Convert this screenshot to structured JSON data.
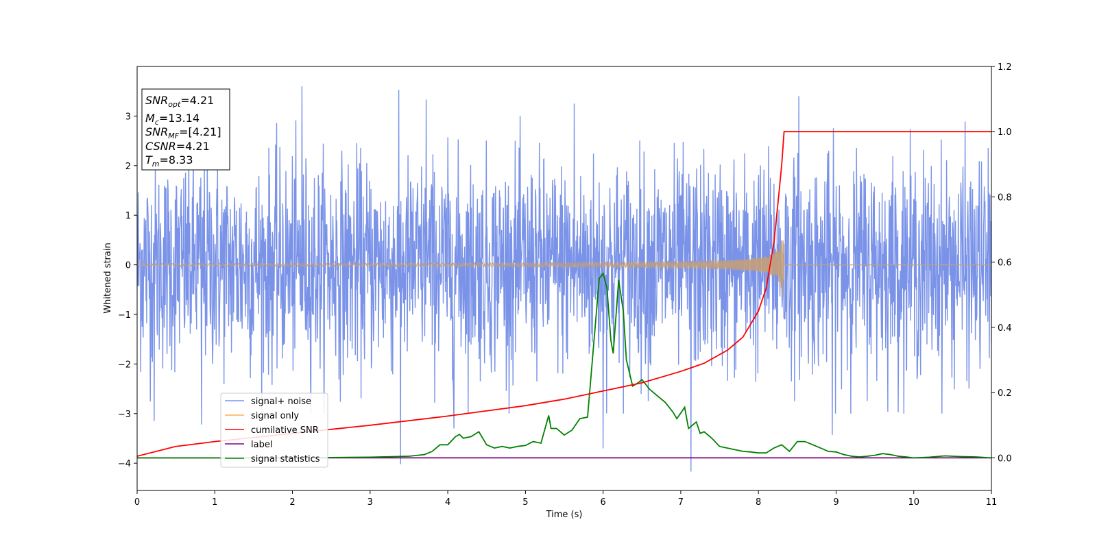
{
  "chart_data": {
    "type": "line",
    "xlabel": "Time (s)",
    "ylabel": "Whitened strain",
    "xlim": [
      0,
      11
    ],
    "ylim": [
      -4.55,
      4.0
    ],
    "y2lim": [
      -0.1,
      1.2
    ],
    "x_ticks": [
      "0",
      "1",
      "2",
      "3",
      "4",
      "5",
      "6",
      "7",
      "8",
      "9",
      "10",
      "11"
    ],
    "y_ticks": [
      "3",
      "2",
      "1",
      "0",
      "−1",
      "−2",
      "−3",
      "−4"
    ],
    "y2_ticks": [
      "1.2",
      "1.0",
      "0.8",
      "0.6",
      "0.4",
      "0.2",
      "0.0"
    ],
    "grid": false,
    "legend_position": "lower-left",
    "colors": {
      "signal_noise": "#7a93e8",
      "signal_only": "#f7b050",
      "overlap": "#c4a07a",
      "cumulative": "#ff0000",
      "label": "#800080",
      "statistics": "#008000"
    },
    "series": [
      {
        "name": "signal+ noise",
        "axis": "left",
        "description_values": "noise band approx ±2 with peaks up to 3.6 and down to -4.2",
        "extremes": [
          {
            "x": 2.12,
            "y": 3.6
          },
          {
            "x": 3.37,
            "y": 3.53
          },
          {
            "x": 3.72,
            "y": 3.33
          },
          {
            "x": 5.63,
            "y": 3.25
          },
          {
            "x": 8.52,
            "y": 3.4
          },
          {
            "x": 3.39,
            "y": -4.02
          },
          {
            "x": 6.0,
            "y": -3.7
          },
          {
            "x": 7.13,
            "y": -4.17
          },
          {
            "x": 8.95,
            "y": -3.43
          },
          {
            "x": 0.22,
            "y": -3.15
          },
          {
            "x": 0.83,
            "y": -3.22
          },
          {
            "x": 4.08,
            "y": -3.3
          }
        ]
      },
      {
        "name": "signal only",
        "axis": "left",
        "chirp_end": 8.33,
        "peak_amplitude": 0.68
      },
      {
        "name": "cumilative SNR",
        "axis": "right",
        "x": [
          0,
          0.5,
          1,
          2,
          3,
          4,
          5,
          5.5,
          6,
          6.5,
          7,
          7.3,
          7.6,
          7.8,
          8.0,
          8.1,
          8.2,
          8.26,
          8.3,
          8.33,
          8.4,
          9,
          10,
          11
        ],
        "values": [
          0.005,
          0.035,
          0.05,
          0.075,
          0.1,
          0.128,
          0.16,
          0.18,
          0.205,
          0.23,
          0.265,
          0.29,
          0.33,
          0.37,
          0.45,
          0.52,
          0.66,
          0.8,
          0.9,
          1.0,
          1.0,
          1.0,
          1.0,
          1.0
        ]
      },
      {
        "name": "label",
        "axis": "right",
        "x": [
          0,
          11
        ],
        "values": [
          0.0,
          0.0
        ]
      },
      {
        "name": "signal statistics",
        "axis": "right",
        "x": [
          0,
          1,
          2,
          3,
          3.5,
          3.7,
          3.8,
          3.9,
          4.0,
          4.1,
          4.15,
          4.2,
          4.3,
          4.4,
          4.5,
          4.6,
          4.7,
          4.8,
          4.9,
          5.0,
          5.1,
          5.2,
          5.3,
          5.33,
          5.4,
          5.5,
          5.6,
          5.7,
          5.8,
          5.88,
          5.95,
          6.0,
          6.05,
          6.1,
          6.13,
          6.2,
          6.26,
          6.3,
          6.38,
          6.45,
          6.5,
          6.6,
          6.7,
          6.8,
          6.9,
          6.95,
          7.05,
          7.1,
          7.2,
          7.25,
          7.3,
          7.4,
          7.5,
          7.6,
          7.7,
          7.8,
          7.9,
          8.0,
          8.1,
          8.2,
          8.3,
          8.4,
          8.5,
          8.6,
          8.7,
          8.8,
          8.9,
          9.0,
          9.1,
          9.2,
          9.3,
          9.4,
          9.5,
          9.6,
          9.7,
          9.8,
          9.9,
          10.0,
          10.2,
          10.4,
          10.6,
          10.8,
          11.0
        ],
        "values": [
          0.0,
          0.0,
          0.0,
          0.002,
          0.005,
          0.01,
          0.02,
          0.04,
          0.04,
          0.065,
          0.072,
          0.06,
          0.065,
          0.08,
          0.04,
          0.03,
          0.035,
          0.03,
          0.035,
          0.038,
          0.05,
          0.045,
          0.13,
          0.09,
          0.09,
          0.07,
          0.085,
          0.12,
          0.125,
          0.35,
          0.55,
          0.565,
          0.52,
          0.36,
          0.32,
          0.545,
          0.45,
          0.3,
          0.22,
          0.23,
          0.24,
          0.21,
          0.19,
          0.17,
          0.14,
          0.12,
          0.155,
          0.09,
          0.11,
          0.075,
          0.08,
          0.06,
          0.035,
          0.03,
          0.025,
          0.02,
          0.018,
          0.015,
          0.015,
          0.03,
          0.04,
          0.02,
          0.05,
          0.05,
          0.04,
          0.03,
          0.02,
          0.018,
          0.01,
          0.005,
          0.003,
          0.005,
          0.008,
          0.013,
          0.01,
          0.005,
          0.003,
          0.0,
          0.002,
          0.006,
          0.004,
          0.003,
          0.0
        ]
      }
    ],
    "legend": [
      "signal+ noise",
      "signal only",
      "cumilative SNR",
      "label",
      "signal statistics"
    ],
    "info_box": {
      "snr_opt_main": "SNR",
      "snr_opt_sub": "opt",
      "snr_opt_value": "=4.21",
      "mc_main": "M",
      "mc_sub": "c",
      "mc_value": "=13.14",
      "snr_mf_main": "SNR",
      "snr_mf_sub": "MF",
      "snr_mf_value": "=[4.21]",
      "csnr_main": "CSNR",
      "csnr_value": "=4.21",
      "tm_main": "T",
      "tm_sub": "m",
      "tm_value": "=8.33"
    }
  }
}
